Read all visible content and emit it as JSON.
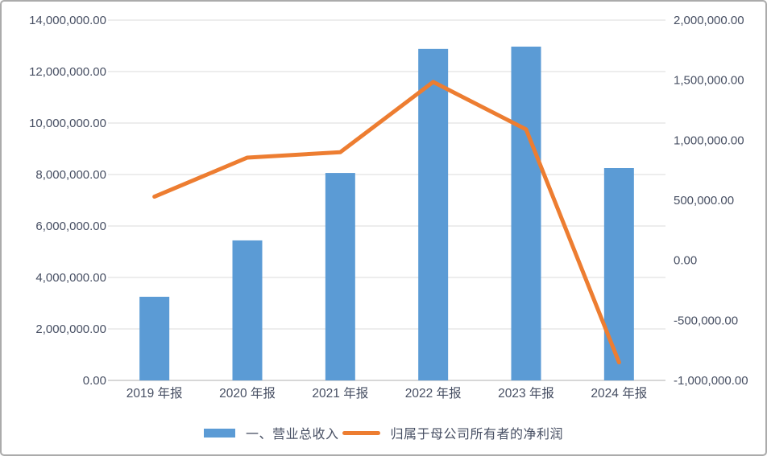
{
  "chart_data": {
    "type": "bar",
    "subtype": "combo-bar-line-dual-axis",
    "title": "",
    "categories": [
      "2019 年报",
      "2020 年报",
      "2021 年报",
      "2022 年报",
      "2023 年报",
      "2024 年报"
    ],
    "series": [
      {
        "name": "一、营业总收入",
        "type": "bar",
        "axis": "left",
        "color": "#5B9BD5",
        "values": [
          3250000,
          5440000,
          8060000,
          12880000,
          12970000,
          8250000
        ]
      },
      {
        "name": "归属于母公司所有者的净利润",
        "type": "line",
        "axis": "right",
        "color": "#ED7D31",
        "values": [
          530000,
          855000,
          900000,
          1485000,
          1090000,
          -850000
        ]
      }
    ],
    "left_axis": {
      "min": 0,
      "max": 14000000,
      "tick_step": 2000000,
      "tick_labels_bottom_to_top": [
        "0.00",
        "2,000,000.00",
        "4,000,000.00",
        "6,000,000.00",
        "8,000,000.00",
        "10,000,000.00",
        "12,000,000.00",
        "14,000,000.00"
      ]
    },
    "right_axis": {
      "min": -1000000,
      "max": 2000000,
      "tick_step": 500000,
      "tick_labels_bottom_to_top": [
        "-1,000,000.00",
        "-500,000.00",
        "0.00",
        "500,000.00",
        "1,000,000.00",
        "1,500,000.00",
        "2,000,000.00"
      ]
    },
    "grid": true,
    "legend_position": "bottom",
    "colors": {
      "gridline": "#e2e2e2",
      "axis_line": "#bfbfbf",
      "label_text": "#474f63",
      "frame_border": "#ababab",
      "background": "#ffffff"
    }
  }
}
